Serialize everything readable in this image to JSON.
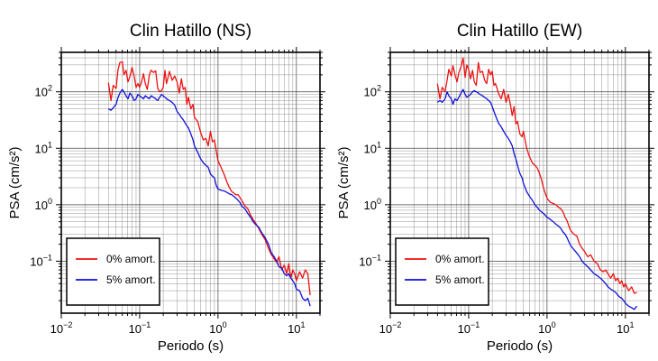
{
  "chart_data": [
    {
      "type": "line",
      "title": "Clin Hatillo (NS)",
      "xlabel": "Periodo (s)",
      "ylabel": "PSA (cm/s²)",
      "xscale": "log",
      "yscale": "log",
      "xlim": [
        0.01,
        20
      ],
      "ylim": [
        0.012,
        500
      ],
      "grid": true,
      "legend": "bottom-left",
      "x_ticks": [
        {
          "base": "10",
          "exp": "−2",
          "value": 0.01
        },
        {
          "base": "10",
          "exp": "−1",
          "value": 0.1
        },
        {
          "base": "10",
          "exp": "0",
          "value": 1
        },
        {
          "base": "10",
          "exp": "1",
          "value": 10
        }
      ],
      "y_ticks": [
        {
          "base": "10",
          "exp": "−1",
          "value": 0.1
        },
        {
          "base": "10",
          "exp": "0",
          "value": 1
        },
        {
          "base": "10",
          "exp": "1",
          "value": 10
        },
        {
          "base": "10",
          "exp": "2",
          "value": 100
        }
      ],
      "series": [
        {
          "name": "0% amort.",
          "color": "#ee1111",
          "x": [
            0.04,
            0.043,
            0.046,
            0.05,
            0.053,
            0.056,
            0.06,
            0.063,
            0.067,
            0.071,
            0.075,
            0.08,
            0.085,
            0.09,
            0.095,
            0.1,
            0.106,
            0.112,
            0.118,
            0.125,
            0.133,
            0.14,
            0.15,
            0.16,
            0.17,
            0.18,
            0.19,
            0.2,
            0.21,
            0.22,
            0.24,
            0.26,
            0.28,
            0.3,
            0.32,
            0.34,
            0.36,
            0.38,
            0.4,
            0.42,
            0.45,
            0.48,
            0.5,
            0.55,
            0.6,
            0.65,
            0.7,
            0.75,
            0.8,
            0.85,
            0.9,
            0.95,
            1.0,
            1.1,
            1.2,
            1.3,
            1.4,
            1.5,
            1.6,
            1.7,
            1.8,
            1.9,
            2.0,
            2.2,
            2.4,
            2.6,
            2.8,
            3.0,
            3.3,
            3.6,
            4.0,
            4.4,
            4.8,
            5.2,
            5.6,
            6.0,
            6.5,
            7.0,
            7.5,
            8.0,
            8.5,
            9.0,
            9.5,
            10,
            11,
            12,
            13,
            14,
            15
          ],
          "values": [
            145,
            70,
            130,
            115,
            250,
            330,
            340,
            200,
            240,
            150,
            185,
            270,
            190,
            120,
            140,
            120,
            150,
            210,
            140,
            110,
            200,
            240,
            220,
            235,
            115,
            100,
            105,
            120,
            240,
            140,
            230,
            160,
            190,
            150,
            95,
            170,
            110,
            120,
            60,
            80,
            50,
            60,
            35,
            30,
            19,
            14,
            15,
            11,
            20,
            13,
            14,
            9,
            6,
            4.5,
            3.4,
            2.5,
            2.0,
            1.7,
            1.6,
            1.5,
            1.5,
            1.35,
            1.2,
            0.95,
            0.85,
            0.65,
            0.55,
            0.48,
            0.38,
            0.3,
            0.24,
            0.17,
            0.13,
            0.11,
            0.095,
            0.12,
            0.07,
            0.085,
            0.06,
            0.09,
            0.05,
            0.07,
            0.06,
            0.045,
            0.065,
            0.05,
            0.07,
            0.06,
            0.025
          ]
        },
        {
          "name": "5% amort.",
          "color": "#1111dd",
          "x": [
            0.04,
            0.043,
            0.046,
            0.05,
            0.053,
            0.056,
            0.06,
            0.063,
            0.067,
            0.071,
            0.075,
            0.08,
            0.085,
            0.09,
            0.095,
            0.1,
            0.106,
            0.112,
            0.118,
            0.125,
            0.133,
            0.14,
            0.15,
            0.16,
            0.17,
            0.18,
            0.19,
            0.2,
            0.21,
            0.22,
            0.24,
            0.26,
            0.28,
            0.3,
            0.32,
            0.34,
            0.36,
            0.38,
            0.4,
            0.42,
            0.45,
            0.48,
            0.5,
            0.55,
            0.6,
            0.65,
            0.7,
            0.75,
            0.8,
            0.85,
            0.9,
            0.95,
            1.0,
            1.1,
            1.2,
            1.3,
            1.4,
            1.5,
            1.6,
            1.7,
            1.8,
            1.9,
            2.0,
            2.2,
            2.4,
            2.6,
            2.8,
            3.0,
            3.3,
            3.6,
            4.0,
            4.4,
            4.8,
            5.2,
            5.6,
            6.0,
            6.5,
            7.0,
            7.5,
            8.0,
            8.5,
            9.0,
            9.5,
            10,
            11,
            12,
            13,
            14,
            15
          ],
          "values": [
            50,
            47,
            52,
            60,
            80,
            95,
            110,
            100,
            85,
            75,
            95,
            85,
            70,
            75,
            90,
            85,
            80,
            75,
            85,
            80,
            75,
            85,
            80,
            75,
            70,
            80,
            90,
            85,
            80,
            75,
            70,
            65,
            58,
            45,
            40,
            35,
            32,
            28,
            25,
            23,
            18,
            14,
            11,
            8.5,
            6.5,
            5.5,
            5.0,
            4.6,
            3.5,
            3.2,
            3.0,
            2.2,
            1.9,
            1.8,
            1.75,
            1.65,
            1.55,
            1.5,
            1.4,
            1.3,
            1.2,
            1.1,
            0.95,
            0.85,
            0.7,
            0.6,
            0.5,
            0.45,
            0.4,
            0.32,
            0.26,
            0.2,
            0.14,
            0.12,
            0.1,
            0.08,
            0.075,
            0.06,
            0.055,
            0.06,
            0.05,
            0.045,
            0.04,
            0.032,
            0.03,
            0.022,
            0.02,
            0.022,
            0.016
          ]
        }
      ]
    },
    {
      "type": "line",
      "title": "Clin Hatillo (EW)",
      "xlabel": "Periodo (s)",
      "ylabel": "PSA (cm/s²)",
      "xscale": "log",
      "yscale": "log",
      "xlim": [
        0.01,
        20
      ],
      "ylim": [
        0.012,
        500
      ],
      "grid": true,
      "legend": "bottom-left",
      "x_ticks": [
        {
          "base": "10",
          "exp": "−2",
          "value": 0.01
        },
        {
          "base": "10",
          "exp": "−1",
          "value": 0.1
        },
        {
          "base": "10",
          "exp": "0",
          "value": 1
        },
        {
          "base": "10",
          "exp": "1",
          "value": 10
        }
      ],
      "y_ticks": [
        {
          "base": "10",
          "exp": "−1",
          "value": 0.1
        },
        {
          "base": "10",
          "exp": "0",
          "value": 1
        },
        {
          "base": "10",
          "exp": "1",
          "value": 10
        },
        {
          "base": "10",
          "exp": "2",
          "value": 100
        }
      ],
      "series": [
        {
          "name": "0% amort.",
          "color": "#ee1111",
          "x": [
            0.04,
            0.043,
            0.046,
            0.05,
            0.053,
            0.056,
            0.06,
            0.063,
            0.067,
            0.071,
            0.075,
            0.08,
            0.085,
            0.09,
            0.095,
            0.1,
            0.106,
            0.112,
            0.118,
            0.125,
            0.133,
            0.14,
            0.15,
            0.16,
            0.17,
            0.18,
            0.19,
            0.2,
            0.21,
            0.22,
            0.24,
            0.26,
            0.28,
            0.3,
            0.32,
            0.34,
            0.36,
            0.38,
            0.4,
            0.42,
            0.45,
            0.48,
            0.5,
            0.55,
            0.6,
            0.65,
            0.7,
            0.75,
            0.8,
            0.85,
            0.9,
            0.95,
            1.0,
            1.1,
            1.2,
            1.3,
            1.4,
            1.5,
            1.6,
            1.7,
            1.8,
            1.9,
            2.0,
            2.2,
            2.4,
            2.6,
            2.8,
            3.0,
            3.3,
            3.6,
            4.0,
            4.4,
            4.8,
            5.2,
            5.6,
            6.0,
            6.5,
            7.0,
            7.5,
            8.0,
            8.5,
            9.0,
            9.5,
            10,
            11,
            12,
            13,
            14
          ],
          "values": [
            140,
            75,
            120,
            100,
            160,
            250,
            190,
            290,
            200,
            150,
            220,
            280,
            400,
            180,
            300,
            250,
            170,
            240,
            150,
            130,
            330,
            220,
            230,
            160,
            140,
            250,
            200,
            230,
            130,
            140,
            95,
            75,
            110,
            65,
            90,
            60,
            38,
            55,
            27,
            30,
            18,
            16,
            20,
            10,
            7,
            5.5,
            5,
            4.5,
            3.6,
            2.8,
            2.0,
            1.6,
            1.3,
            1.1,
            1.05,
            1.0,
            0.9,
            0.85,
            0.75,
            0.6,
            0.52,
            0.42,
            0.35,
            0.3,
            0.28,
            0.2,
            0.17,
            0.15,
            0.12,
            0.13,
            0.1,
            0.09,
            0.07,
            0.065,
            0.07,
            0.06,
            0.05,
            0.06,
            0.045,
            0.05,
            0.04,
            0.045,
            0.035,
            0.04,
            0.03,
            0.035,
            0.027,
            0.028
          ]
        },
        {
          "name": "5% amort.",
          "color": "#1111dd",
          "x": [
            0.04,
            0.043,
            0.046,
            0.05,
            0.053,
            0.056,
            0.06,
            0.063,
            0.067,
            0.071,
            0.075,
            0.08,
            0.085,
            0.09,
            0.095,
            0.1,
            0.106,
            0.112,
            0.118,
            0.125,
            0.133,
            0.14,
            0.15,
            0.16,
            0.17,
            0.18,
            0.19,
            0.2,
            0.21,
            0.22,
            0.24,
            0.26,
            0.28,
            0.3,
            0.32,
            0.34,
            0.36,
            0.38,
            0.4,
            0.42,
            0.45,
            0.48,
            0.5,
            0.55,
            0.6,
            0.65,
            0.7,
            0.75,
            0.8,
            0.85,
            0.9,
            0.95,
            1.0,
            1.1,
            1.2,
            1.3,
            1.4,
            1.5,
            1.6,
            1.7,
            1.8,
            1.9,
            2.0,
            2.2,
            2.4,
            2.6,
            2.8,
            3.0,
            3.3,
            3.6,
            4.0,
            4.4,
            4.8,
            5.2,
            5.6,
            6.0,
            6.5,
            7.0,
            7.5,
            8.0,
            8.5,
            9.0,
            9.5,
            10,
            11,
            12,
            13,
            14
          ],
          "values": [
            65,
            70,
            65,
            75,
            100,
            85,
            75,
            60,
            75,
            70,
            80,
            95,
            110,
            90,
            80,
            85,
            90,
            100,
            105,
            100,
            95,
            90,
            85,
            80,
            75,
            70,
            65,
            55,
            45,
            38,
            28,
            24,
            20,
            17,
            15,
            13,
            11,
            8,
            6.5,
            5,
            3.6,
            3.0,
            2.4,
            1.7,
            1.4,
            1.2,
            1.0,
            0.9,
            0.8,
            0.75,
            0.7,
            0.65,
            0.6,
            0.55,
            0.5,
            0.45,
            0.42,
            0.38,
            0.33,
            0.3,
            0.26,
            0.22,
            0.19,
            0.16,
            0.14,
            0.12,
            0.1,
            0.09,
            0.08,
            0.07,
            0.06,
            0.055,
            0.05,
            0.045,
            0.04,
            0.035,
            0.032,
            0.03,
            0.028,
            0.025,
            0.023,
            0.022,
            0.02,
            0.018,
            0.016,
            0.015,
            0.014,
            0.016
          ]
        }
      ]
    }
  ]
}
